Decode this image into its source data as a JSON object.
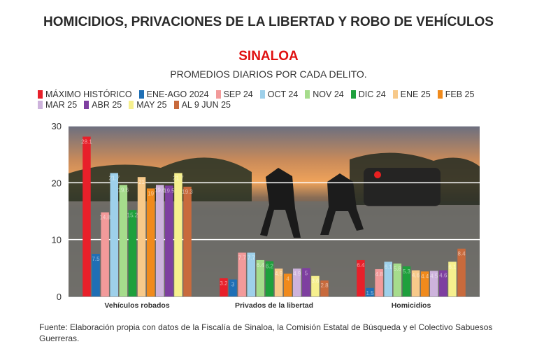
{
  "header": {
    "title": "HOMICIDIOS, PRIVACIONES DE LA LIBERTAD Y ROBO DE VEHÍCULOS",
    "subtitle": "SINALOA",
    "subtitle2": "PROMEDIOS DIARIOS POR CADA DELITO."
  },
  "source": "Fuente: Elaboración propia con datos de la Fiscalía de Sinaloa, la Comisión Estatal de Búsqueda y el Colectivo Sabuesos Guerreras.",
  "chart_data": {
    "type": "bar",
    "title": "HOMICIDIOS, PRIVACIONES DE LA LIBERTAD Y ROBO DE VEHÍCULOS",
    "subtitle": "SINALOA",
    "categories": [
      "Vehículos robados",
      "Privados de la libertad",
      "Homicidios"
    ],
    "ylim": [
      0,
      30
    ],
    "yticks": [
      "0",
      "10",
      "20",
      "30"
    ],
    "grid": true,
    "legend_position": "top",
    "series": [
      {
        "name": "MÁXIMO HISTÓRICO",
        "color": "#e8202a",
        "values": [
          28.1,
          3.2,
          6.4
        ],
        "labels": [
          "28.1",
          "3.2",
          "6.4"
        ]
      },
      {
        "name": "ENE-AGO 2024",
        "color": "#1f6fb5",
        "values": [
          7.5,
          3,
          1.5
        ],
        "labels": [
          "7.5",
          "3",
          "1.5"
        ]
      },
      {
        "name": "SEP 24",
        "color": "#f29a9a",
        "values": [
          14.8,
          7.7,
          4.8
        ],
        "labels": [
          "14.8",
          "7.7",
          "4.8"
        ]
      },
      {
        "name": "OCT 24",
        "color": "#9ed0ea",
        "values": [
          21.7,
          7.7,
          6.1
        ],
        "labels": [
          "21.7",
          "7.7",
          "6.1"
        ]
      },
      {
        "name": "NOV 24",
        "color": "#a6dc8c",
        "values": [
          19.6,
          6.4,
          5.8
        ],
        "labels": [
          "19.6",
          "6.4",
          "5.8"
        ]
      },
      {
        "name": "DIC 24",
        "color": "#1ea03c",
        "values": [
          15.2,
          6.2,
          5.3
        ],
        "labels": [
          "15.2",
          "6.2",
          "5.3"
        ]
      },
      {
        "name": "ENE 25",
        "color": "#f7c98a",
        "values": [
          21,
          4.9,
          4.6
        ],
        "labels": [
          "21",
          "4.9",
          "4.6"
        ]
      },
      {
        "name": "FEB 25",
        "color": "#f08a1c",
        "values": [
          19,
          4,
          4.4
        ],
        "labels": [
          "19",
          "4",
          "4.4"
        ]
      },
      {
        "name": "MAR 25",
        "color": "#cdb3dc",
        "values": [
          19.6,
          4.9,
          4.5
        ],
        "labels": [
          "19.6",
          "4.9",
          "4.5"
        ]
      },
      {
        "name": "ABR 25",
        "color": "#7e3fa0",
        "values": [
          19.5,
          5,
          4.6
        ],
        "labels": [
          "19.5",
          "5",
          "4.6"
        ]
      },
      {
        "name": "MAY 25",
        "color": "#f6f08e",
        "values": [
          21.7,
          3.6,
          6.1
        ],
        "labels": [
          "21.7",
          "3.6",
          "6.1"
        ]
      },
      {
        "name": "AL 9 JUN 25",
        "color": "#c86a3c",
        "values": [
          19.3,
          2.8,
          8.4
        ],
        "labels": [
          "19.3",
          "2.8",
          "8.4"
        ]
      }
    ]
  }
}
